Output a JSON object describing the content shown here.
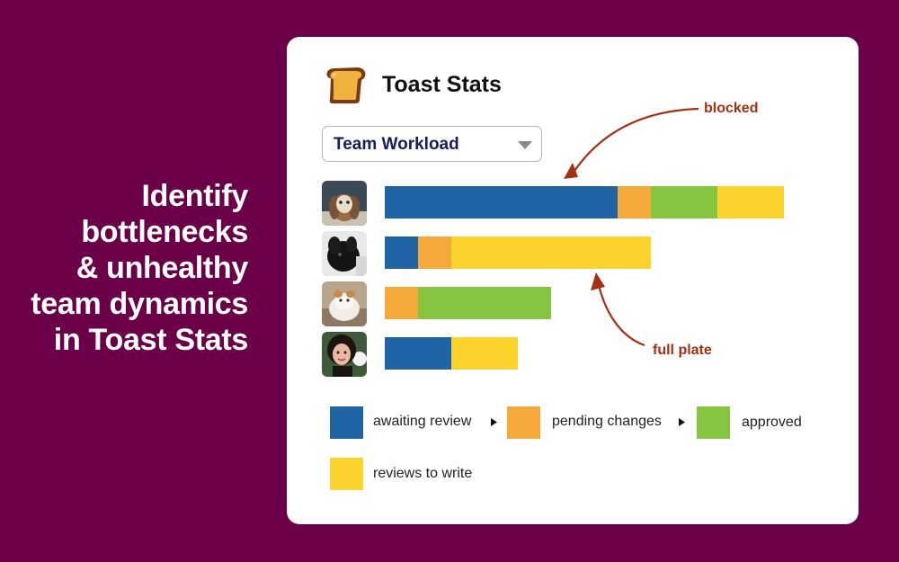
{
  "headline": {
    "lines": [
      "Identify",
      "bottlenecks",
      "& unhealthy",
      "team dynamics",
      "in Toast Stats"
    ]
  },
  "app": {
    "title": "Toast Stats",
    "logo_icon": "toast-icon"
  },
  "view_select": {
    "value": "Team Workload",
    "caret_icon": "chevron-down-icon"
  },
  "colors": {
    "awaiting_review": "#1f65a6",
    "pending_changes": "#f6a93b",
    "approved": "#86c540",
    "reviews_to_write": "#fcd32c",
    "background": "#6b0048",
    "annotation": "#a33012"
  },
  "chart_data": {
    "type": "bar",
    "orientation": "horizontal",
    "stacked": true,
    "categories": [
      "member-1",
      "member-2",
      "member-3",
      "member-4"
    ],
    "series": [
      {
        "name": "awaiting review",
        "values": [
          7,
          1,
          0,
          2
        ]
      },
      {
        "name": "pending changes",
        "values": [
          1,
          1,
          1,
          0
        ]
      },
      {
        "name": "approved",
        "values": [
          2,
          0,
          4,
          0
        ]
      },
      {
        "name": "reviews to write",
        "values": [
          2,
          6,
          0,
          2
        ]
      }
    ]
  },
  "annotations": {
    "blocked": "blocked",
    "full_plate": "full plate"
  },
  "legend": {
    "items": [
      {
        "label": "awaiting review",
        "caret_icon": "caret-right-icon"
      },
      {
        "label": "pending changes",
        "caret_icon": "caret-right-icon"
      },
      {
        "label": "approved"
      },
      {
        "label": "reviews to write"
      }
    ]
  }
}
